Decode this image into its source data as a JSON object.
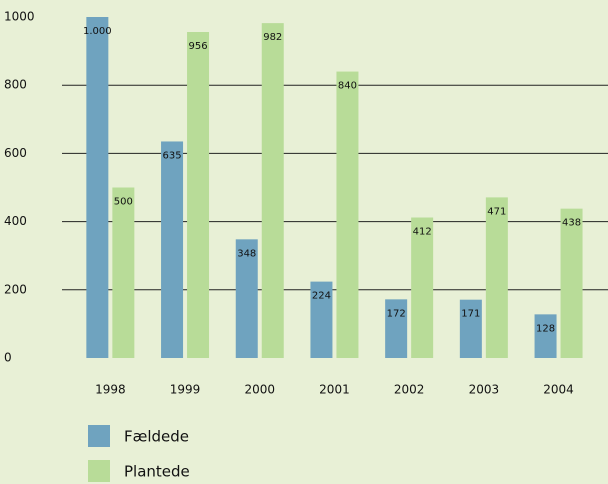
{
  "chart_data": {
    "type": "bar",
    "categories": [
      "1998",
      "1999",
      "2000",
      "2001",
      "2002",
      "2003",
      "2004"
    ],
    "series": [
      {
        "name": "Fældede",
        "color": "#6fa3bf",
        "values": [
          1000,
          635,
          348,
          224,
          172,
          171,
          128
        ],
        "value_labels": [
          "1.000",
          "635",
          "348",
          "224",
          "172",
          "171",
          "128"
        ]
      },
      {
        "name": "Plantede",
        "color": "#b8dc98",
        "values": [
          500,
          956,
          982,
          840,
          412,
          471,
          438
        ]
      }
    ],
    "ylim": [
      0,
      1000
    ],
    "yticks": [
      0,
      200,
      400,
      600,
      800,
      1000
    ],
    "grid": true,
    "legend": "bottom"
  }
}
